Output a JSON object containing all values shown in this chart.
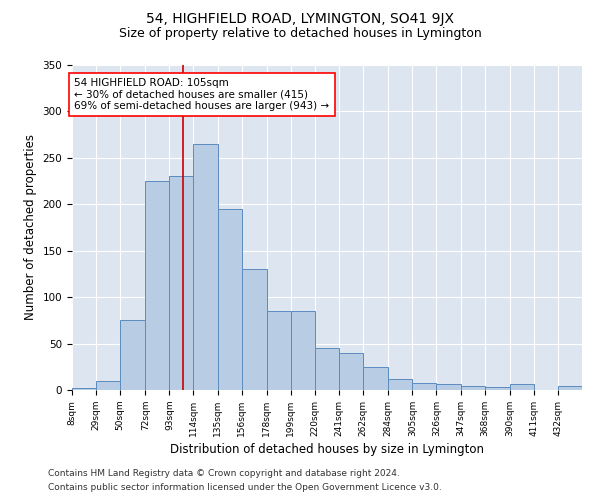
{
  "title": "54, HIGHFIELD ROAD, LYMINGTON, SO41 9JX",
  "subtitle": "Size of property relative to detached houses in Lymington",
  "xlabel": "Distribution of detached houses by size in Lymington",
  "ylabel": "Number of detached properties",
  "annotation_line1": "54 HIGHFIELD ROAD: 105sqm",
  "annotation_line2": "← 30% of detached houses are smaller (415)",
  "annotation_line3": "69% of semi-detached houses are larger (943) →",
  "property_size": 105,
  "footnote1": "Contains HM Land Registry data © Crown copyright and database right 2024.",
  "footnote2": "Contains public sector information licensed under the Open Government Licence v3.0.",
  "bin_labels": [
    "8sqm",
    "29sqm",
    "50sqm",
    "72sqm",
    "93sqm",
    "114sqm",
    "135sqm",
    "156sqm",
    "178sqm",
    "199sqm",
    "220sqm",
    "241sqm",
    "262sqm",
    "284sqm",
    "305sqm",
    "326sqm",
    "347sqm",
    "368sqm",
    "390sqm",
    "411sqm",
    "432sqm"
  ],
  "bar_values": [
    2,
    10,
    75,
    225,
    230,
    265,
    195,
    130,
    85,
    85,
    45,
    40,
    25,
    12,
    8,
    6,
    4,
    3,
    7,
    0,
    4
  ],
  "bar_color": "#b8cce4",
  "bar_edge_color": "#5b8bc0",
  "line_color": "#cc0000",
  "background_color": "#dde5f0",
  "ylim": [
    0,
    350
  ],
  "yticks": [
    0,
    50,
    100,
    150,
    200,
    250,
    300,
    350
  ],
  "title_fontsize": 10,
  "subtitle_fontsize": 9,
  "xlabel_fontsize": 8.5,
  "ylabel_fontsize": 8.5,
  "annotation_fontsize": 7.5,
  "footnote_fontsize": 6.5
}
